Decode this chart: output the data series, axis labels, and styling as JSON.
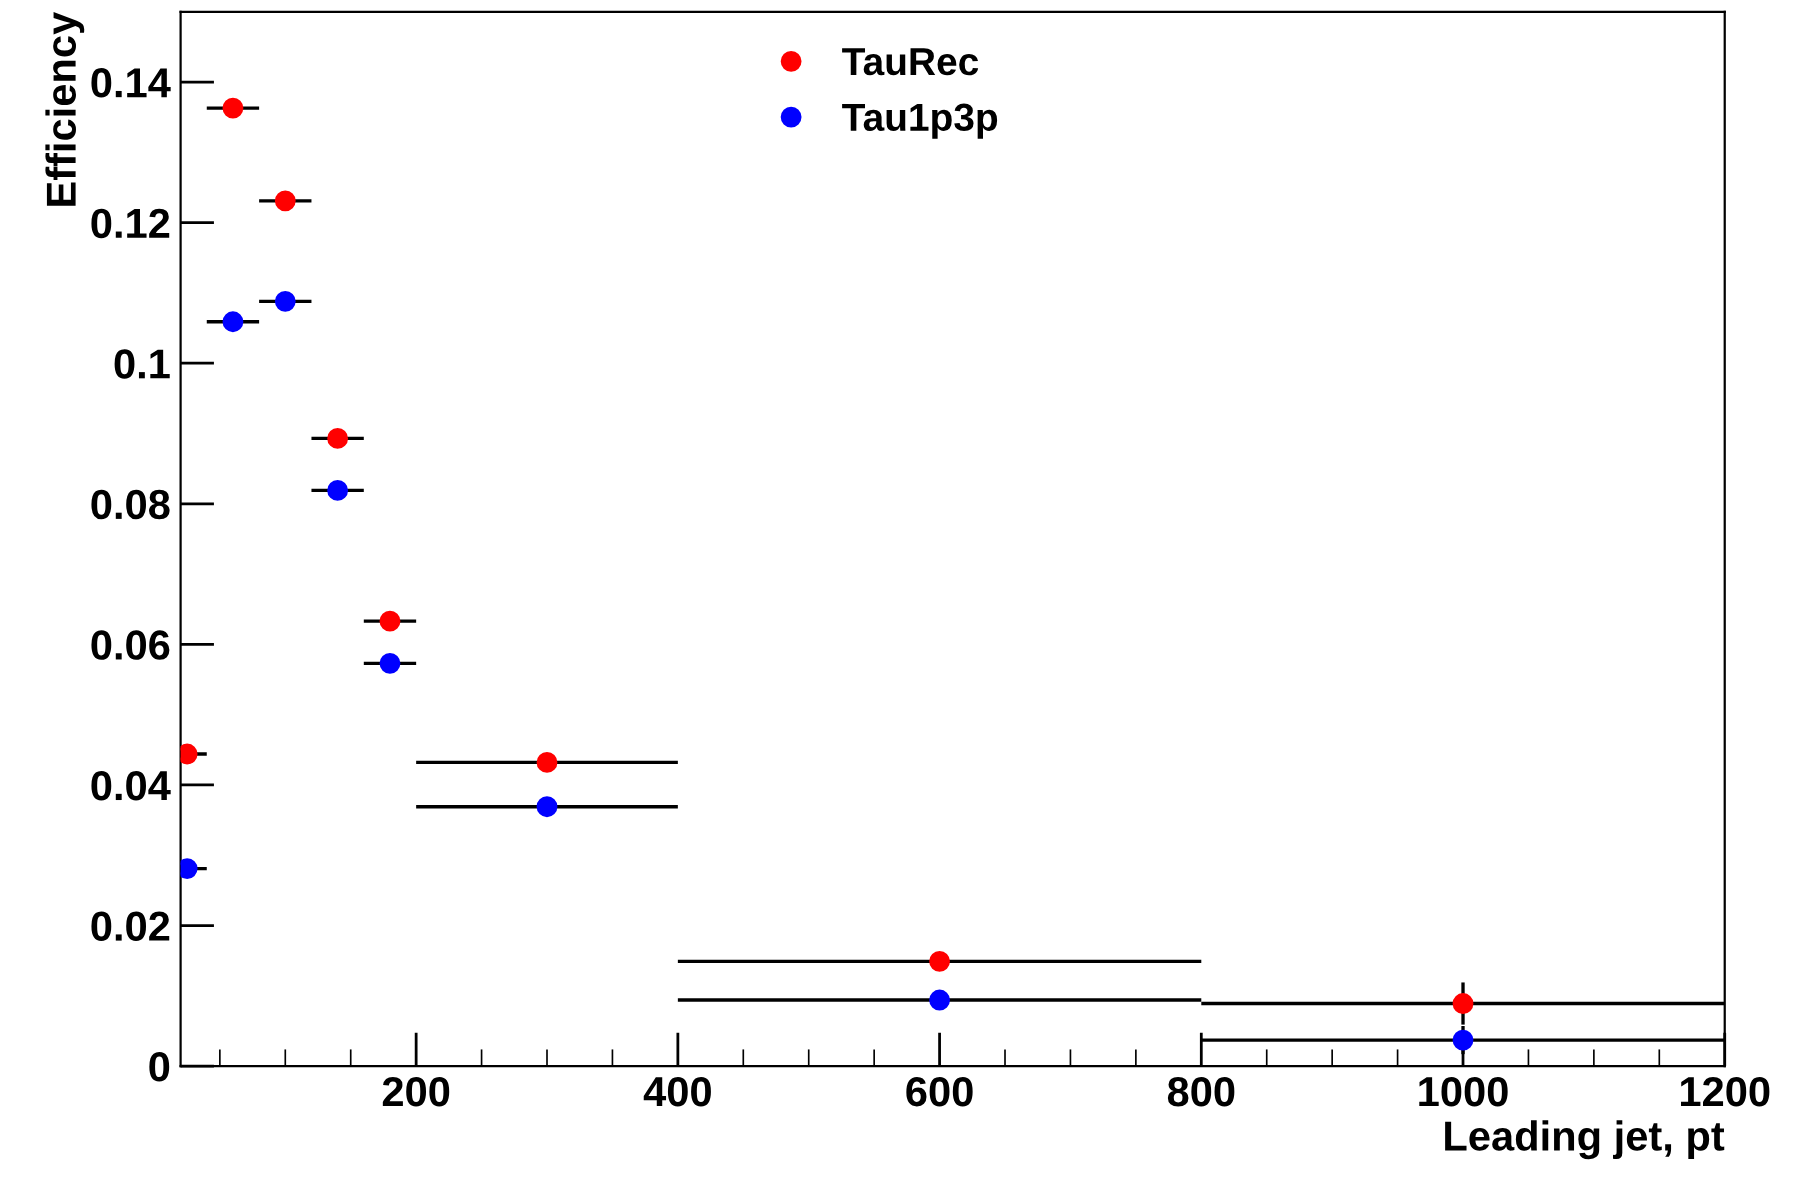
{
  "chart_data": {
    "type": "scatter",
    "xlabel": "Leading jet, pt",
    "ylabel": "Efficiency",
    "x": [
      25,
      60,
      100,
      140,
      180,
      300,
      600,
      1000
    ],
    "series": [
      {
        "name": "TauRec",
        "color": "#ff0000",
        "values": [
          0.0444,
          0.1363,
          0.1231,
          0.0893,
          0.0633,
          0.0432,
          0.0149,
          0.0089
        ],
        "xerrors": [
          15,
          20,
          20,
          20,
          20,
          100,
          200,
          200
        ],
        "errors": [
          null,
          null,
          null,
          null,
          null,
          null,
          null,
          0.003
        ]
      },
      {
        "name": "Tau1p3p",
        "color": "#0000ff",
        "values": [
          0.0281,
          0.1059,
          0.1088,
          0.0819,
          0.0573,
          0.0369,
          0.0094,
          0.0037
        ],
        "xerrors": [
          15,
          20,
          20,
          20,
          20,
          100,
          200,
          200
        ],
        "errors": [
          null,
          null,
          null,
          null,
          null,
          null,
          null,
          0.002
        ]
      }
    ],
    "xlim": [
      20,
      1200
    ],
    "xticks": [
      200,
      400,
      600,
      800,
      1000,
      1200
    ],
    "ylim": [
      0,
      0.15
    ],
    "yticks": [
      0,
      0.02,
      0.04,
      0.06,
      0.08,
      0.1,
      0.12,
      0.14
    ],
    "marker": "circle",
    "legend": "top",
    "grid": false
  }
}
